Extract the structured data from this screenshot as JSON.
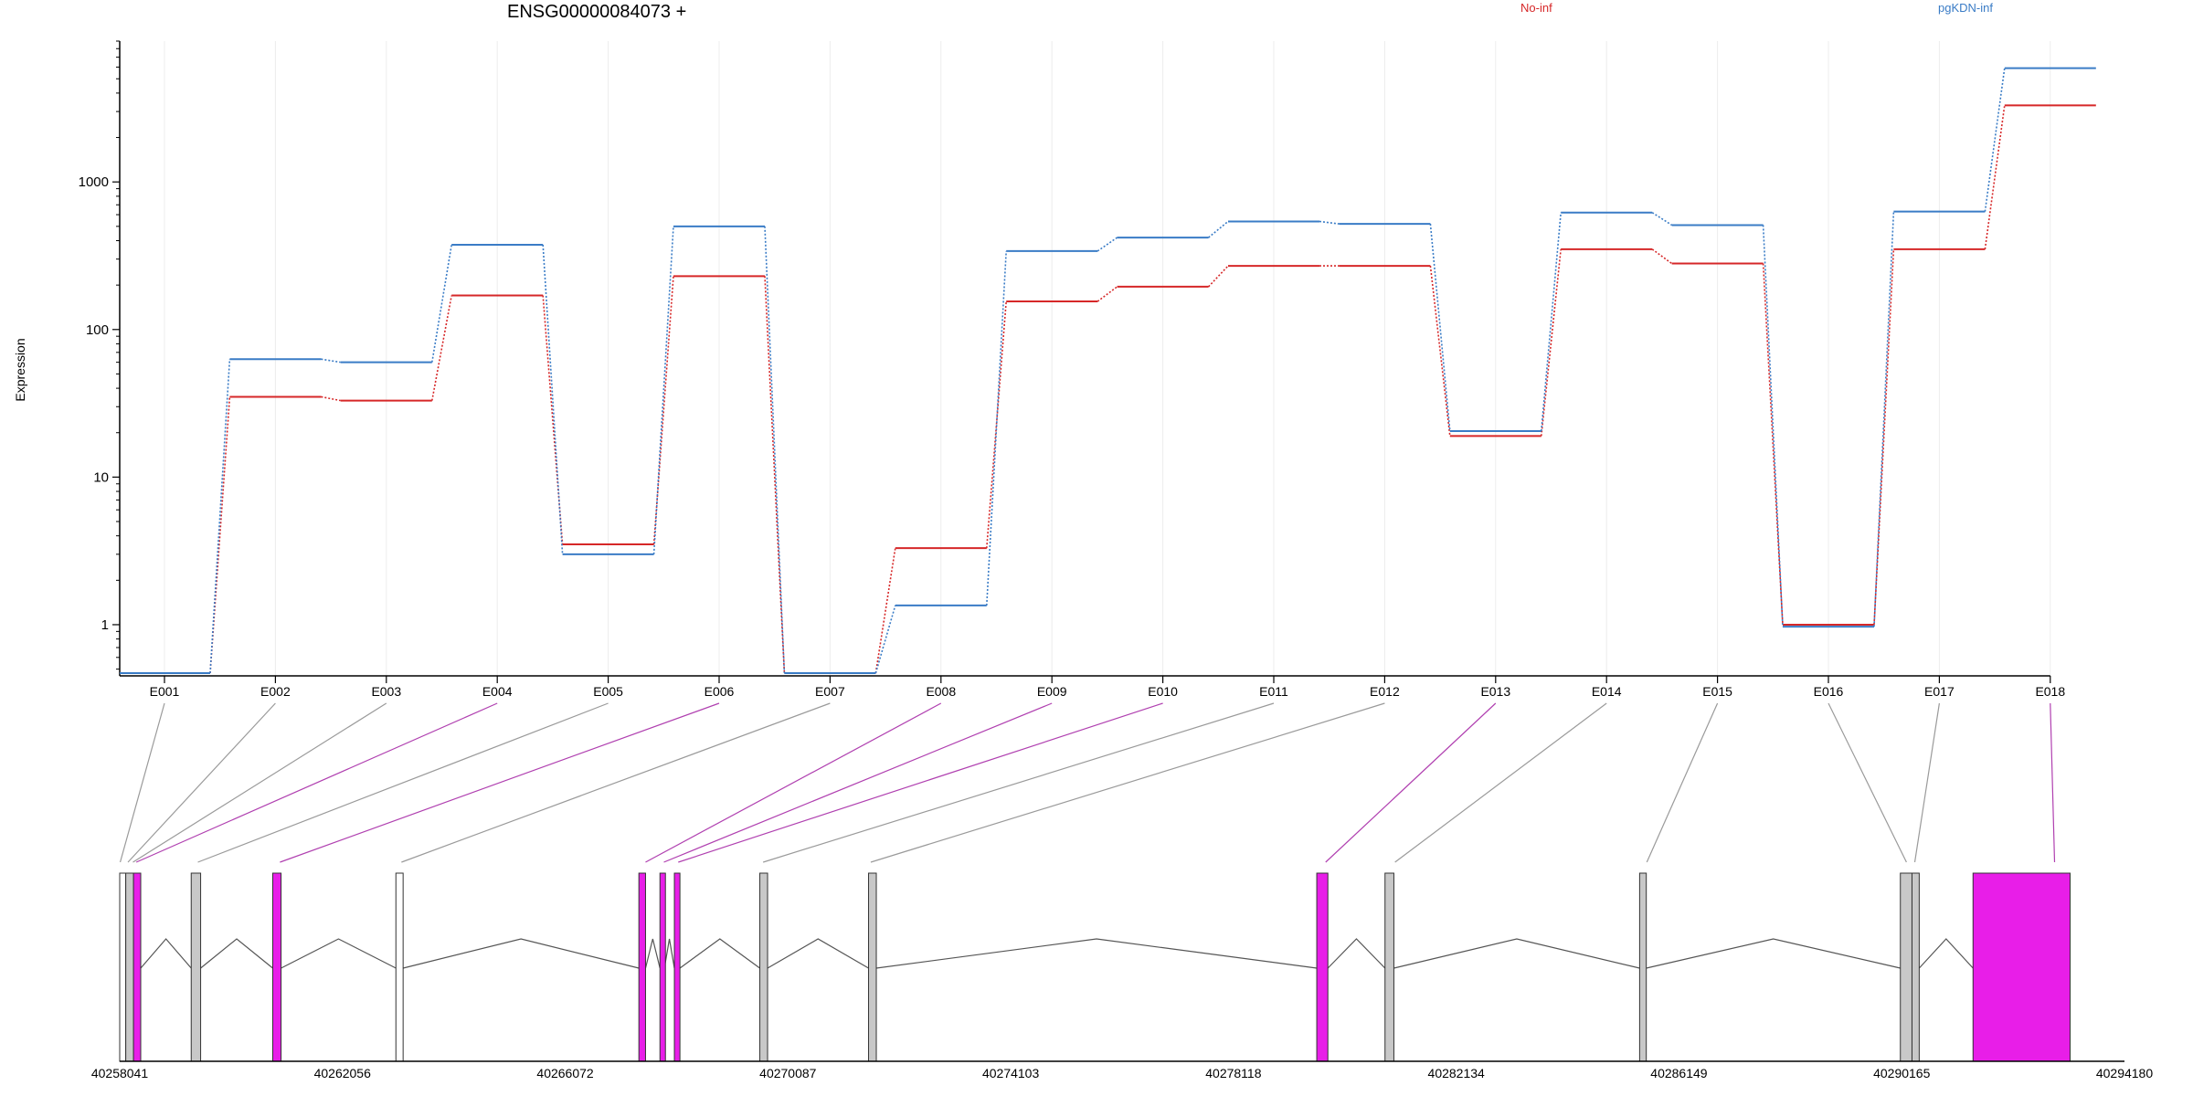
{
  "chart_data": {
    "type": "line",
    "title": "ENSG00000084073 +",
    "xlabel": "",
    "ylabel": "Expression",
    "yscale": "log",
    "ylim": [
      0.45,
      9000
    ],
    "yticks": [
      1,
      10,
      100,
      1000
    ],
    "grid": "vertical light gray lines at each exon",
    "legend_placement": "top-right",
    "categories": [
      "E001",
      "E002",
      "E003",
      "E004",
      "E005",
      "E006",
      "E007",
      "E008",
      "E009",
      "E010",
      "E011",
      "E012",
      "E013",
      "E014",
      "E015",
      "E016",
      "E017",
      "E018"
    ],
    "series": [
      {
        "name": "No-inf",
        "color": "#d62728",
        "values": [
          0.47,
          35,
          33,
          170,
          3.5,
          230,
          0.47,
          3.3,
          155,
          195,
          270,
          270,
          19,
          350,
          280,
          1.0,
          350,
          3300
        ]
      },
      {
        "name": "pgKDN-inf",
        "color": "#3a7cc6",
        "values": [
          0.47,
          63,
          60,
          375,
          3.0,
          500,
          0.47,
          1.35,
          340,
          420,
          540,
          520,
          20.5,
          620,
          510,
          0.97,
          630,
          5900
        ]
      }
    ],
    "connector_highlight": [
      false,
      false,
      false,
      true,
      false,
      true,
      false,
      true,
      true,
      true,
      false,
      false,
      true,
      false,
      false,
      false,
      false,
      true
    ]
  },
  "gene_model": {
    "coord_start": 40258041,
    "coord_end": 40294180,
    "coord_ticks": [
      "40258041",
      "40262056",
      "40266072",
      "40270087",
      "40274103",
      "40278118",
      "40282134",
      "40286149",
      "40290165",
      "40294180"
    ],
    "highlight_color": "#e81ee8",
    "exon_fill_colors": [
      "#ffffff",
      "#c8c8c8",
      "#e81ee8"
    ],
    "exons": [
      {
        "start": 40258041,
        "end": 40258150,
        "fill": "white"
      },
      {
        "start": 40258150,
        "end": 40258290,
        "fill": "gray"
      },
      {
        "start": 40258290,
        "end": 40258420,
        "fill": "magenta"
      },
      {
        "start": 40259330,
        "end": 40259500,
        "fill": "gray"
      },
      {
        "start": 40260800,
        "end": 40260950,
        "fill": "magenta"
      },
      {
        "start": 40263020,
        "end": 40263150,
        "fill": "white"
      },
      {
        "start": 40267400,
        "end": 40267520,
        "fill": "magenta"
      },
      {
        "start": 40267780,
        "end": 40267860,
        "fill": "magenta"
      },
      {
        "start": 40268040,
        "end": 40268140,
        "fill": "magenta"
      },
      {
        "start": 40269580,
        "end": 40269720,
        "fill": "gray"
      },
      {
        "start": 40271540,
        "end": 40271680,
        "fill": "gray"
      },
      {
        "start": 40279620,
        "end": 40279820,
        "fill": "magenta"
      },
      {
        "start": 40280850,
        "end": 40281010,
        "fill": "gray"
      },
      {
        "start": 40285440,
        "end": 40285560,
        "fill": "gray"
      },
      {
        "start": 40290140,
        "end": 40290350,
        "fill": "gray"
      },
      {
        "start": 40290350,
        "end": 40290480,
        "fill": "gray"
      },
      {
        "start": 40291450,
        "end": 40293200,
        "fill": "magenta"
      }
    ],
    "exon_map_targets": [
      40258050,
      40258190,
      40258280,
      40258340,
      40259450,
      40260930,
      40263120,
      40267520,
      40267850,
      40268110,
      40269640,
      40271580,
      40279780,
      40281030,
      40285570,
      40290250,
      40290400,
      40292920
    ]
  }
}
